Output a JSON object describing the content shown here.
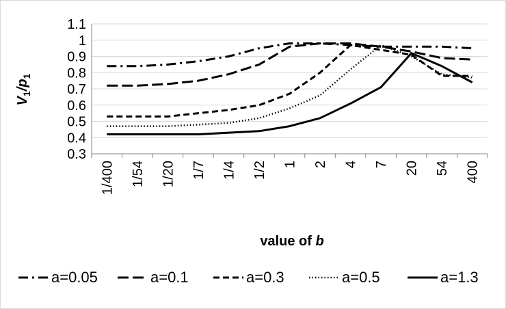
{
  "chart_data": {
    "type": "line",
    "categories": [
      "1/400",
      "1/54",
      "1/20",
      "1/7",
      "1/4",
      "1/2",
      "1",
      "2",
      "4",
      "7",
      "20",
      "54",
      "400"
    ],
    "ylabel_parts": [
      "V",
      "1",
      "/p",
      "1"
    ],
    "xlabel_parts": [
      "value of ",
      "b"
    ],
    "ylim": [
      0.3,
      1.1
    ],
    "yticks": [
      "0.3",
      "0.4",
      "0.5",
      "0.6",
      "0.7",
      "0.8",
      "0.9",
      "1",
      "1.1"
    ],
    "grid": true,
    "legend_position": "bottom",
    "series": [
      {
        "name": "a=0.05",
        "dash": "dashdot",
        "values": [
          0.84,
          0.84,
          0.85,
          0.87,
          0.9,
          0.95,
          0.98,
          0.98,
          0.97,
          0.96,
          0.96,
          0.96,
          0.95
        ]
      },
      {
        "name": "a=0.1",
        "dash": "longdash",
        "values": [
          0.72,
          0.72,
          0.73,
          0.75,
          0.79,
          0.85,
          0.96,
          0.98,
          0.98,
          0.96,
          0.93,
          0.89,
          0.88
        ]
      },
      {
        "name": "a=0.3",
        "dash": "dash",
        "values": [
          0.53,
          0.53,
          0.53,
          0.55,
          0.57,
          0.6,
          0.67,
          0.8,
          0.97,
          0.94,
          0.91,
          0.78,
          0.78
        ]
      },
      {
        "name": "a=0.5",
        "dash": "dot",
        "values": [
          0.47,
          0.47,
          0.47,
          0.48,
          0.49,
          0.52,
          0.58,
          0.66,
          0.82,
          0.97,
          0.9,
          0.79,
          0.77
        ]
      },
      {
        "name": "a=1.3",
        "dash": "solid",
        "values": [
          0.42,
          0.42,
          0.42,
          0.42,
          0.43,
          0.44,
          0.47,
          0.52,
          0.61,
          0.71,
          0.92,
          0.84,
          0.74
        ]
      }
    ]
  }
}
